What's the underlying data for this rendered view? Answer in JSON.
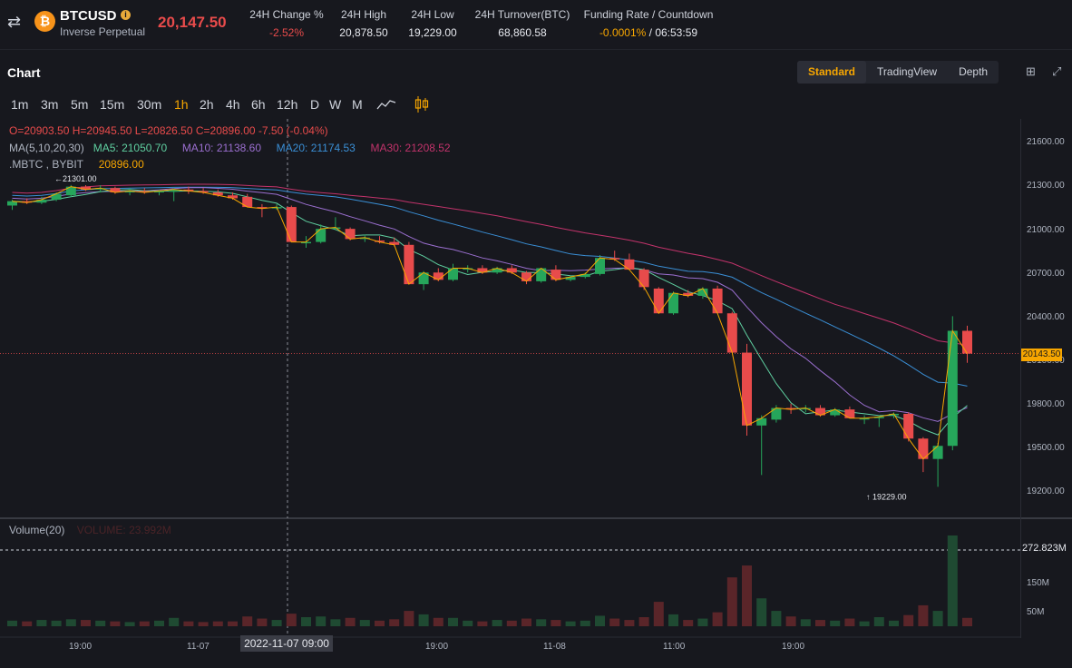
{
  "header": {
    "symbol": "BTCUSD",
    "symbol_sub": "Inverse Perpetual",
    "last_price": "20,147.50",
    "stats": [
      {
        "label": "24H Change %",
        "value": "-2.52%"
      },
      {
        "label": "24H High",
        "value": "20,878.50"
      },
      {
        "label": "24H Low",
        "value": "19,229.00"
      },
      {
        "label": "24H Turnover(BTC)",
        "value": "68,860.58"
      },
      {
        "label": "Funding Rate / Countdown",
        "value": "-0.0001%",
        "countdown": "/ 06:53:59"
      }
    ],
    "icons": {
      "swap": "swap-icon",
      "coin": "bitcoin-icon",
      "info": "info-icon"
    }
  },
  "chart_panel": {
    "title": "Chart",
    "views": [
      "Standard",
      "TradingView",
      "Depth"
    ],
    "active_view": "Standard",
    "timeframes": [
      "1m",
      "3m",
      "5m",
      "15m",
      "30m",
      "1h",
      "2h",
      "4h",
      "6h",
      "12h",
      "D",
      "W",
      "M"
    ],
    "active_timeframe": "1h"
  },
  "legend": {
    "ohlc": "O=20903.50  H=20945.50  L=20826.50  C=20896.00  -7.50 (-0.04%)",
    "ma_title": "MA(5,10,20,30)",
    "ma5": "MA5: 21050.70",
    "ma10": "MA10: 21138.60",
    "ma20": "MA20: 21174.53",
    "ma30": "MA30: 21208.52",
    "index_name": ".MBTC , BYBIT",
    "index_value": "20896.00",
    "volume_title": "Volume(20)",
    "volume_value": "VOLUME: 23.992M"
  },
  "annotations": {
    "high_marker": "21301.00",
    "low_marker": "19229.00",
    "current_price": "20143.50",
    "volume_max": "272.823M",
    "crosshair_time": "2022-11-07 09:00"
  },
  "colors": {
    "up": "#26a65b",
    "down": "#e84b4b",
    "ma5": "#f7a600",
    "ma10": "#5fcfa0",
    "ma20": "#9b6fd0",
    "ma30_blue": "#3a8fd6",
    "ma30": "#c2336b",
    "accent": "#f7a600"
  },
  "chart_data": {
    "type": "candlestick",
    "price_axis_ticks": [
      "21600.00",
      "21300.00",
      "21000.00",
      "20700.00",
      "20400.00",
      "20100.00",
      "19800.00",
      "19500.00",
      "19200.00"
    ],
    "volume_axis_ticks": [
      "150M",
      "50M"
    ],
    "time_axis_ticks": [
      "19:00",
      "11-07",
      "19:00",
      "11-08",
      "11:00",
      "19:00"
    ],
    "price_range": [
      19100,
      21700
    ],
    "candles": [
      {
        "o": 21160,
        "h": 21200,
        "l": 21130,
        "c": 21190,
        "v": 8
      },
      {
        "o": 21190,
        "h": 21210,
        "l": 21170,
        "c": 21180,
        "v": 7
      },
      {
        "o": 21180,
        "h": 21220,
        "l": 21170,
        "c": 21200,
        "v": 9
      },
      {
        "o": 21200,
        "h": 21250,
        "l": 21190,
        "c": 21240,
        "v": 8
      },
      {
        "o": 21230,
        "h": 21301,
        "l": 21220,
        "c": 21290,
        "v": 10
      },
      {
        "o": 21290,
        "h": 21300,
        "l": 21260,
        "c": 21270,
        "v": 9
      },
      {
        "o": 21270,
        "h": 21300,
        "l": 21250,
        "c": 21280,
        "v": 8
      },
      {
        "o": 21280,
        "h": 21290,
        "l": 21240,
        "c": 21250,
        "v": 7
      },
      {
        "o": 21250,
        "h": 21280,
        "l": 21230,
        "c": 21260,
        "v": 6
      },
      {
        "o": 21260,
        "h": 21280,
        "l": 21240,
        "c": 21250,
        "v": 7
      },
      {
        "o": 21250,
        "h": 21270,
        "l": 21230,
        "c": 21260,
        "v": 8
      },
      {
        "o": 21255,
        "h": 21280,
        "l": 21190,
        "c": 21270,
        "v": 12
      },
      {
        "o": 21270,
        "h": 21290,
        "l": 21240,
        "c": 21260,
        "v": 7
      },
      {
        "o": 21260,
        "h": 21280,
        "l": 21240,
        "c": 21250,
        "v": 6
      },
      {
        "o": 21250,
        "h": 21270,
        "l": 21220,
        "c": 21230,
        "v": 7
      },
      {
        "o": 21230,
        "h": 21250,
        "l": 21200,
        "c": 21210,
        "v": 7
      },
      {
        "o": 21220,
        "h": 21240,
        "l": 21150,
        "c": 21150,
        "v": 14
      },
      {
        "o": 21150,
        "h": 21170,
        "l": 21080,
        "c": 21140,
        "v": 11
      },
      {
        "o": 21140,
        "h": 21170,
        "l": 21130,
        "c": 21150,
        "v": 9
      },
      {
        "o": 21150,
        "h": 21160,
        "l": 20910,
        "c": 20910,
        "v": 18
      },
      {
        "o": 20910,
        "h": 20950,
        "l": 20870,
        "c": 20910,
        "v": 13
      },
      {
        "o": 20910,
        "h": 21030,
        "l": 20900,
        "c": 21000,
        "v": 14
      },
      {
        "o": 21000,
        "h": 21080,
        "l": 20990,
        "c": 21010,
        "v": 10
      },
      {
        "o": 21000,
        "h": 21010,
        "l": 20920,
        "c": 20930,
        "v": 12
      },
      {
        "o": 20930,
        "h": 20960,
        "l": 20910,
        "c": 20940,
        "v": 9
      },
      {
        "o": 20920,
        "h": 20950,
        "l": 20900,
        "c": 20910,
        "v": 8
      },
      {
        "o": 20910,
        "h": 20940,
        "l": 20880,
        "c": 20890,
        "v": 10
      },
      {
        "o": 20890,
        "h": 20910,
        "l": 20620,
        "c": 20620,
        "v": 22
      },
      {
        "o": 20620,
        "h": 20710,
        "l": 20580,
        "c": 20700,
        "v": 17
      },
      {
        "o": 20700,
        "h": 20730,
        "l": 20640,
        "c": 20650,
        "v": 12
      },
      {
        "o": 20650,
        "h": 20760,
        "l": 20640,
        "c": 20730,
        "v": 12
      },
      {
        "o": 20720,
        "h": 20750,
        "l": 20700,
        "c": 20730,
        "v": 8
      },
      {
        "o": 20730,
        "h": 20750,
        "l": 20690,
        "c": 20700,
        "v": 7
      },
      {
        "o": 20700,
        "h": 20740,
        "l": 20690,
        "c": 20730,
        "v": 9
      },
      {
        "o": 20730,
        "h": 20750,
        "l": 20690,
        "c": 20700,
        "v": 8
      },
      {
        "o": 20700,
        "h": 20710,
        "l": 20620,
        "c": 20640,
        "v": 11
      },
      {
        "o": 20640,
        "h": 20730,
        "l": 20630,
        "c": 20730,
        "v": 10
      },
      {
        "o": 20720,
        "h": 20750,
        "l": 20640,
        "c": 20650,
        "v": 9
      },
      {
        "o": 20650,
        "h": 20680,
        "l": 20640,
        "c": 20670,
        "v": 7
      },
      {
        "o": 20670,
        "h": 20700,
        "l": 20660,
        "c": 20690,
        "v": 8
      },
      {
        "o": 20690,
        "h": 20820,
        "l": 20680,
        "c": 20800,
        "v": 15
      },
      {
        "o": 20800,
        "h": 20850,
        "l": 20780,
        "c": 20790,
        "v": 11
      },
      {
        "o": 20790,
        "h": 20830,
        "l": 20720,
        "c": 20720,
        "v": 9
      },
      {
        "o": 20720,
        "h": 20730,
        "l": 20580,
        "c": 20600,
        "v": 13
      },
      {
        "o": 20590,
        "h": 20600,
        "l": 20420,
        "c": 20420,
        "v": 35
      },
      {
        "o": 20420,
        "h": 20570,
        "l": 20410,
        "c": 20560,
        "v": 17
      },
      {
        "o": 20560,
        "h": 20580,
        "l": 20530,
        "c": 20540,
        "v": 9
      },
      {
        "o": 20540,
        "h": 20600,
        "l": 20520,
        "c": 20590,
        "v": 11
      },
      {
        "o": 20590,
        "h": 20610,
        "l": 20420,
        "c": 20420,
        "v": 20
      },
      {
        "o": 20420,
        "h": 20430,
        "l": 20150,
        "c": 20150,
        "v": 70
      },
      {
        "o": 20150,
        "h": 20210,
        "l": 19580,
        "c": 19650,
        "v": 87
      },
      {
        "o": 19650,
        "h": 19720,
        "l": 19310,
        "c": 19700,
        "v": 40
      },
      {
        "o": 19690,
        "h": 19790,
        "l": 19670,
        "c": 19770,
        "v": 22
      },
      {
        "o": 19770,
        "h": 19800,
        "l": 19730,
        "c": 19760,
        "v": 14
      },
      {
        "o": 19760,
        "h": 19790,
        "l": 19740,
        "c": 19770,
        "v": 10
      },
      {
        "o": 19770,
        "h": 19790,
        "l": 19710,
        "c": 19720,
        "v": 9
      },
      {
        "o": 19720,
        "h": 19770,
        "l": 19710,
        "c": 19760,
        "v": 8
      },
      {
        "o": 19760,
        "h": 19780,
        "l": 19700,
        "c": 19700,
        "v": 11
      },
      {
        "o": 19700,
        "h": 19720,
        "l": 19660,
        "c": 19700,
        "v": 7
      },
      {
        "o": 19700,
        "h": 19720,
        "l": 19640,
        "c": 19710,
        "v": 13
      },
      {
        "o": 19720,
        "h": 19740,
        "l": 19700,
        "c": 19730,
        "v": 8
      },
      {
        "o": 19730,
        "h": 19740,
        "l": 19540,
        "c": 19560,
        "v": 16
      },
      {
        "o": 19560,
        "h": 19570,
        "l": 19330,
        "c": 19420,
        "v": 30
      },
      {
        "o": 19420,
        "h": 19530,
        "l": 19229,
        "c": 19510,
        "v": 22
      },
      {
        "o": 19510,
        "h": 20400,
        "l": 19480,
        "c": 20300,
        "v": 130
      },
      {
        "o": 20300,
        "h": 20335,
        "l": 20080,
        "c": 20143.5,
        "v": 12
      }
    ]
  }
}
